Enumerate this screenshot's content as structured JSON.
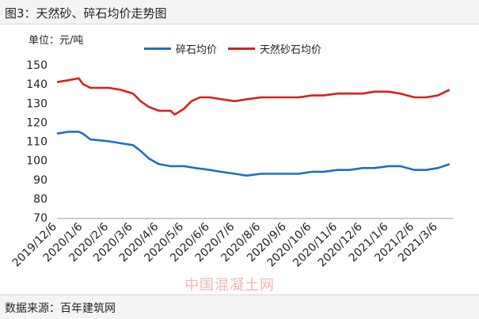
{
  "header": {
    "title": "图3：天然砂、碎石均价走势图"
  },
  "unit_label": "单位：元/吨",
  "footer": {
    "source": "数据来源：百年建筑网"
  },
  "watermark": "中国混凝土网",
  "chart_data": {
    "type": "line",
    "x": [
      "2019/12/6",
      "2020/1/6",
      "2020/2/6",
      "2020/3/6",
      "2020/4/6",
      "2020/5/6",
      "2020/6/6",
      "2020/7/6",
      "2020/8/6",
      "2020/9/6",
      "2020/10/6",
      "2020/11/6",
      "2020/12/6",
      "2021/1/6",
      "2021/2/6",
      "2021/3/6"
    ],
    "ylim": [
      70,
      150
    ],
    "yticks": [
      70,
      80,
      90,
      100,
      110,
      120,
      130,
      140,
      150
    ],
    "grid": false,
    "legend_position": "top",
    "series": [
      {
        "name": "碎石均价",
        "color": "#1f6fc5",
        "points": [
          [
            "2019/12/6",
            114
          ],
          [
            "2019/12/20",
            115
          ],
          [
            "2020/1/1",
            115
          ],
          [
            "2020/1/6",
            114
          ],
          [
            "2020/1/15",
            111
          ],
          [
            "2020/2/6",
            110
          ],
          [
            "2020/2/20",
            109
          ],
          [
            "2020/3/6",
            108
          ],
          [
            "2020/3/15",
            105
          ],
          [
            "2020/3/25",
            101
          ],
          [
            "2020/4/6",
            98
          ],
          [
            "2020/4/20",
            97
          ],
          [
            "2020/5/6",
            97
          ],
          [
            "2020/5/20",
            96
          ],
          [
            "2020/6/6",
            95
          ],
          [
            "2020/6/20",
            94
          ],
          [
            "2020/7/6",
            93
          ],
          [
            "2020/7/20",
            92
          ],
          [
            "2020/8/6",
            93
          ],
          [
            "2020/8/20",
            93
          ],
          [
            "2020/9/6",
            93
          ],
          [
            "2020/9/20",
            93
          ],
          [
            "2020/10/6",
            94
          ],
          [
            "2020/10/20",
            94
          ],
          [
            "2020/11/6",
            95
          ],
          [
            "2020/11/20",
            95
          ],
          [
            "2020/12/6",
            96
          ],
          [
            "2020/12/20",
            96
          ],
          [
            "2021/1/6",
            97
          ],
          [
            "2021/1/20",
            97
          ],
          [
            "2021/2/6",
            95
          ],
          [
            "2021/2/20",
            95
          ],
          [
            "2021/3/6",
            96
          ],
          [
            "2021/3/20",
            98
          ]
        ]
      },
      {
        "name": "天然砂石均价",
        "color": "#d62020",
        "points": [
          [
            "2019/12/6",
            141
          ],
          [
            "2019/12/20",
            142
          ],
          [
            "2020/1/1",
            143
          ],
          [
            "2020/1/6",
            140
          ],
          [
            "2020/1/15",
            138
          ],
          [
            "2020/2/6",
            138
          ],
          [
            "2020/2/20",
            137
          ],
          [
            "2020/3/6",
            135
          ],
          [
            "2020/3/15",
            131
          ],
          [
            "2020/3/25",
            128
          ],
          [
            "2020/4/6",
            126
          ],
          [
            "2020/4/20",
            126
          ],
          [
            "2020/4/25",
            124
          ],
          [
            "2020/5/6",
            127
          ],
          [
            "2020/5/15",
            131
          ],
          [
            "2020/5/25",
            133
          ],
          [
            "2020/6/6",
            133
          ],
          [
            "2020/6/20",
            132
          ],
          [
            "2020/7/6",
            131
          ],
          [
            "2020/7/20",
            132
          ],
          [
            "2020/8/6",
            133
          ],
          [
            "2020/8/20",
            133
          ],
          [
            "2020/9/6",
            133
          ],
          [
            "2020/9/20",
            133
          ],
          [
            "2020/10/6",
            134
          ],
          [
            "2020/10/20",
            134
          ],
          [
            "2020/11/6",
            135
          ],
          [
            "2020/11/20",
            135
          ],
          [
            "2020/12/6",
            135
          ],
          [
            "2020/12/20",
            136
          ],
          [
            "2021/1/6",
            136
          ],
          [
            "2021/1/20",
            135
          ],
          [
            "2021/2/6",
            133
          ],
          [
            "2021/2/20",
            133
          ],
          [
            "2021/3/6",
            134
          ],
          [
            "2021/3/20",
            137
          ]
        ]
      }
    ]
  }
}
